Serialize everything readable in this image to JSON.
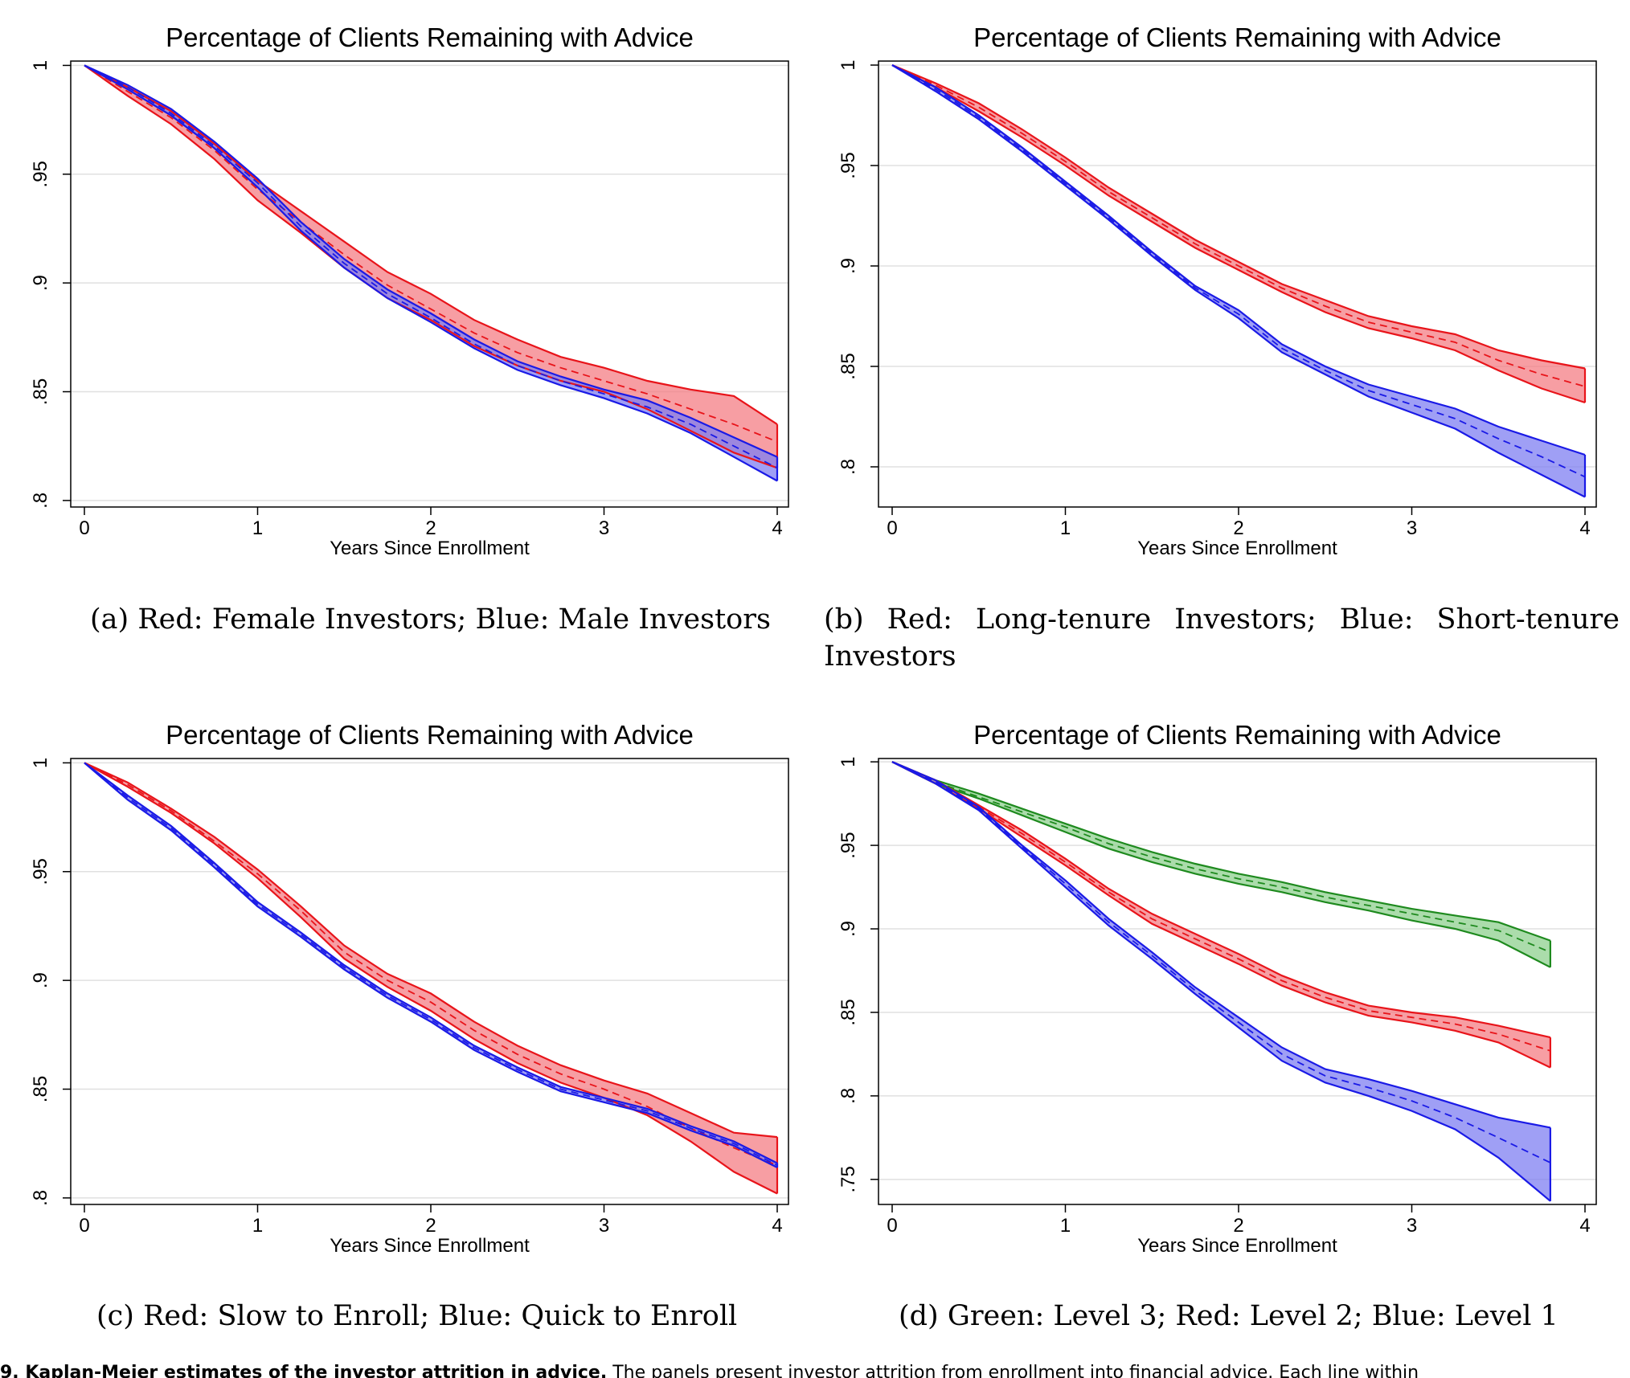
{
  "chart_data": [
    {
      "type": "line",
      "title": "Percentage of Clients Remaining with Advice",
      "xlabel": "Years Since Enrollment",
      "ylabel": "",
      "xlim": [
        0,
        4
      ],
      "ylim": [
        0.797,
        1.002
      ],
      "xticks": [
        "0",
        "1",
        "2",
        "3",
        "4"
      ],
      "yticks": [
        ".8",
        ".85",
        ".9",
        ".95",
        "1"
      ],
      "ytick_values": [
        0.8,
        0.85,
        0.9,
        0.95,
        1.0
      ],
      "grid": true,
      "caption_label": "(a)",
      "caption": "Red: Female Investors; Blue: Male Investors",
      "x": [
        0,
        0.25,
        0.5,
        0.75,
        1,
        1.25,
        1.5,
        1.75,
        2,
        2.25,
        2.5,
        2.75,
        3,
        3.25,
        3.5,
        3.75,
        4
      ],
      "series": [
        {
          "color": "#e8141a",
          "band_color": "#f47d84",
          "values": [
            1.0,
            0.988,
            0.976,
            0.961,
            0.943,
            0.928,
            0.913,
            0.899,
            0.888,
            0.877,
            0.868,
            0.861,
            0.855,
            0.849,
            0.842,
            0.835,
            0.827
          ],
          "lower": [
            1.0,
            0.986,
            0.973,
            0.957,
            0.938,
            0.923,
            0.907,
            0.893,
            0.883,
            0.871,
            0.862,
            0.855,
            0.85,
            0.842,
            0.832,
            0.822,
            0.815
          ],
          "upper": [
            1.0,
            0.99,
            0.979,
            0.964,
            0.947,
            0.933,
            0.919,
            0.905,
            0.895,
            0.883,
            0.874,
            0.866,
            0.861,
            0.855,
            0.851,
            0.848,
            0.835
          ]
        },
        {
          "color": "#1a1ae6",
          "band_color": "#7f7ff2",
          "values": [
            1.0,
            0.99,
            0.978,
            0.963,
            0.946,
            0.926,
            0.909,
            0.895,
            0.884,
            0.872,
            0.862,
            0.855,
            0.849,
            0.843,
            0.835,
            0.825,
            0.815
          ],
          "lower": [
            1.0,
            0.989,
            0.977,
            0.962,
            0.944,
            0.924,
            0.907,
            0.893,
            0.882,
            0.87,
            0.86,
            0.853,
            0.847,
            0.84,
            0.831,
            0.82,
            0.809
          ],
          "upper": [
            1.0,
            0.991,
            0.98,
            0.965,
            0.948,
            0.928,
            0.911,
            0.897,
            0.886,
            0.874,
            0.864,
            0.857,
            0.851,
            0.846,
            0.838,
            0.829,
            0.82
          ]
        }
      ]
    },
    {
      "type": "line",
      "title": "Percentage of Clients Remaining with Advice",
      "xlabel": "Years Since Enrollment",
      "ylabel": "",
      "xlim": [
        0,
        4
      ],
      "ylim": [
        0.78,
        1.002
      ],
      "xticks": [
        "0",
        "1",
        "2",
        "3",
        "4"
      ],
      "yticks": [
        ".8",
        ".85",
        ".9",
        ".95",
        "1"
      ],
      "ytick_values": [
        0.8,
        0.85,
        0.9,
        0.95,
        1.0
      ],
      "grid": true,
      "caption_label": "(b)",
      "caption": "Red: Long-tenure Investors; Blue: Short-tenure Investors",
      "x": [
        0,
        0.25,
        0.5,
        0.75,
        1,
        1.25,
        1.5,
        1.75,
        2,
        2.25,
        2.5,
        2.75,
        3,
        3.25,
        3.5,
        3.75,
        4
      ],
      "series": [
        {
          "color": "#e8141a",
          "band_color": "#f47d84",
          "values": [
            1.0,
            0.99,
            0.979,
            0.966,
            0.952,
            0.937,
            0.924,
            0.911,
            0.9,
            0.889,
            0.88,
            0.872,
            0.867,
            0.862,
            0.853,
            0.846,
            0.84
          ],
          "lower": [
            1.0,
            0.989,
            0.977,
            0.964,
            0.95,
            0.935,
            0.922,
            0.909,
            0.898,
            0.887,
            0.877,
            0.869,
            0.864,
            0.858,
            0.848,
            0.839,
            0.832
          ],
          "upper": [
            1.0,
            0.991,
            0.981,
            0.968,
            0.954,
            0.939,
            0.926,
            0.913,
            0.902,
            0.891,
            0.883,
            0.875,
            0.87,
            0.866,
            0.858,
            0.853,
            0.849
          ]
        },
        {
          "color": "#1a1ae6",
          "band_color": "#7f7ff2",
          "values": [
            1.0,
            0.988,
            0.974,
            0.958,
            0.941,
            0.924,
            0.906,
            0.889,
            0.876,
            0.859,
            0.848,
            0.838,
            0.831,
            0.824,
            0.814,
            0.805,
            0.795
          ],
          "lower": [
            1.0,
            0.987,
            0.973,
            0.957,
            0.94,
            0.923,
            0.905,
            0.888,
            0.874,
            0.857,
            0.846,
            0.835,
            0.827,
            0.819,
            0.807,
            0.796,
            0.785
          ],
          "upper": [
            1.0,
            0.989,
            0.975,
            0.959,
            0.942,
            0.925,
            0.907,
            0.89,
            0.878,
            0.861,
            0.85,
            0.841,
            0.835,
            0.829,
            0.82,
            0.813,
            0.806
          ]
        }
      ]
    },
    {
      "type": "line",
      "title": "Percentage of Clients Remaining with Advice",
      "xlabel": "Years Since Enrollment",
      "ylabel": "",
      "xlim": [
        0,
        4
      ],
      "ylim": [
        0.797,
        1.002
      ],
      "xticks": [
        "0",
        "1",
        "2",
        "3",
        "4"
      ],
      "yticks": [
        ".8",
        ".85",
        ".9",
        ".95",
        "1"
      ],
      "ytick_values": [
        0.8,
        0.85,
        0.9,
        0.95,
        1.0
      ],
      "grid": true,
      "caption_label": "(c)",
      "caption": "Red: Slow to Enroll; Blue: Quick to Enroll",
      "x": [
        0,
        0.25,
        0.5,
        0.75,
        1,
        1.25,
        1.5,
        1.75,
        2,
        2.25,
        2.5,
        2.75,
        3,
        3.25,
        3.5,
        3.75,
        4
      ],
      "series": [
        {
          "color": "#e8141a",
          "band_color": "#f47d84",
          "values": [
            1.0,
            0.99,
            0.978,
            0.964,
            0.949,
            0.932,
            0.913,
            0.9,
            0.89,
            0.877,
            0.866,
            0.857,
            0.85,
            0.842,
            0.832,
            0.823,
            0.815
          ],
          "lower": [
            1.0,
            0.989,
            0.977,
            0.963,
            0.947,
            0.929,
            0.91,
            0.897,
            0.886,
            0.873,
            0.862,
            0.853,
            0.846,
            0.838,
            0.826,
            0.812,
            0.802
          ],
          "upper": [
            1.0,
            0.991,
            0.979,
            0.966,
            0.951,
            0.934,
            0.916,
            0.903,
            0.894,
            0.881,
            0.87,
            0.861,
            0.854,
            0.848,
            0.839,
            0.83,
            0.828
          ]
        },
        {
          "color": "#1a1ae6",
          "band_color": "#7f7ff2",
          "values": [
            1.0,
            0.984,
            0.97,
            0.953,
            0.935,
            0.921,
            0.906,
            0.893,
            0.882,
            0.869,
            0.859,
            0.85,
            0.845,
            0.84,
            0.832,
            0.825,
            0.815
          ],
          "lower": [
            1.0,
            0.983,
            0.969,
            0.952,
            0.934,
            0.92,
            0.905,
            0.892,
            0.881,
            0.868,
            0.858,
            0.849,
            0.844,
            0.839,
            0.831,
            0.824,
            0.814
          ],
          "upper": [
            1.0,
            0.985,
            0.971,
            0.954,
            0.936,
            0.922,
            0.907,
            0.894,
            0.883,
            0.87,
            0.86,
            0.851,
            0.846,
            0.841,
            0.833,
            0.826,
            0.816
          ]
        }
      ]
    },
    {
      "type": "line",
      "title": "Percentage of Clients Remaining with Advice",
      "xlabel": "Years Since Enrollment",
      "ylabel": "",
      "xlim": [
        0,
        4
      ],
      "ylim": [
        0.735,
        1.002
      ],
      "xticks": [
        "0",
        "1",
        "2",
        "3",
        "4"
      ],
      "yticks": [
        ".75",
        ".8",
        ".85",
        ".9",
        ".95",
        "1"
      ],
      "ytick_values": [
        0.75,
        0.8,
        0.85,
        0.9,
        0.95,
        1.0
      ],
      "grid": true,
      "caption_label": "(d)",
      "caption": "Green: Level 3; Red: Level 2; Blue: Level 1",
      "x": [
        0,
        0.25,
        0.5,
        0.75,
        1,
        1.25,
        1.5,
        1.75,
        2,
        2.25,
        2.5,
        2.75,
        3,
        3.25,
        3.5,
        3.8
      ],
      "series": [
        {
          "color": "#1e8a1e",
          "band_color": "#8fd08f",
          "values": [
            1.0,
            0.988,
            0.979,
            0.97,
            0.961,
            0.951,
            0.943,
            0.936,
            0.93,
            0.925,
            0.919,
            0.914,
            0.909,
            0.904,
            0.899,
            0.886
          ],
          "lower": [
            1.0,
            0.987,
            0.978,
            0.968,
            0.958,
            0.948,
            0.94,
            0.933,
            0.927,
            0.922,
            0.916,
            0.911,
            0.905,
            0.9,
            0.893,
            0.877
          ],
          "upper": [
            1.0,
            0.989,
            0.981,
            0.972,
            0.963,
            0.954,
            0.946,
            0.939,
            0.933,
            0.928,
            0.922,
            0.917,
            0.912,
            0.908,
            0.904,
            0.893
          ]
        },
        {
          "color": "#e8141a",
          "band_color": "#f47d84",
          "values": [
            1.0,
            0.988,
            0.973,
            0.957,
            0.94,
            0.922,
            0.906,
            0.894,
            0.882,
            0.869,
            0.859,
            0.851,
            0.847,
            0.843,
            0.837,
            0.827
          ],
          "lower": [
            1.0,
            0.987,
            0.972,
            0.955,
            0.938,
            0.92,
            0.903,
            0.891,
            0.879,
            0.866,
            0.856,
            0.848,
            0.844,
            0.839,
            0.832,
            0.817
          ],
          "upper": [
            1.0,
            0.989,
            0.974,
            0.959,
            0.942,
            0.924,
            0.909,
            0.897,
            0.885,
            0.872,
            0.862,
            0.854,
            0.85,
            0.847,
            0.842,
            0.835
          ]
        },
        {
          "color": "#1a1ae6",
          "band_color": "#7f7ff2",
          "values": [
            1.0,
            0.988,
            0.972,
            0.949,
            0.927,
            0.904,
            0.884,
            0.863,
            0.844,
            0.825,
            0.812,
            0.805,
            0.797,
            0.787,
            0.775,
            0.76
          ],
          "lower": [
            1.0,
            0.987,
            0.971,
            0.948,
            0.925,
            0.902,
            0.882,
            0.861,
            0.841,
            0.821,
            0.808,
            0.8,
            0.791,
            0.78,
            0.763,
            0.737
          ],
          "upper": [
            1.0,
            0.989,
            0.973,
            0.95,
            0.929,
            0.906,
            0.886,
            0.865,
            0.847,
            0.829,
            0.816,
            0.81,
            0.803,
            0.795,
            0.787,
            0.781
          ]
        }
      ]
    }
  ],
  "footnote": {
    "label": "9. Kaplan-Meier estimates of the investor attrition in advice.",
    "text": "The panels present investor attrition from enrollment into financial advice. Each line within"
  }
}
